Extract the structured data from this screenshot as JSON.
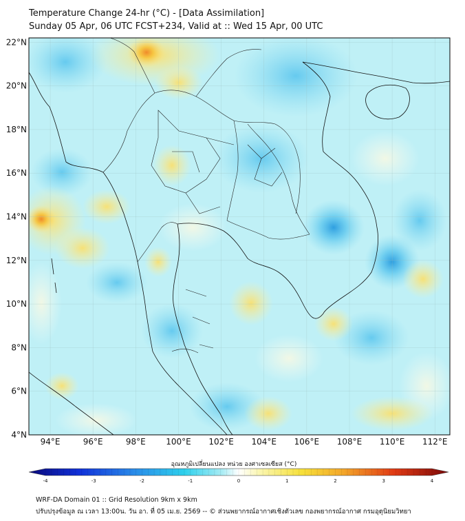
{
  "title": {
    "line1": "Temperature Change 24-hr (°C) - [Data Assimilation]",
    "line2": "Sunday 05 Apr, 06 UTC FCST+234, Valid at :: Wed 15 Apr, 00 UTC"
  },
  "map": {
    "lon_range": [
      93,
      112.7
    ],
    "lat_range": [
      4,
      22.2
    ],
    "lon_ticks": [
      "94°E",
      "96°E",
      "98°E",
      "100°E",
      "102°E",
      "104°E",
      "106°E",
      "108°E",
      "110°E",
      "112°E"
    ],
    "lon_tick_values": [
      94,
      96,
      98,
      100,
      102,
      104,
      106,
      108,
      110,
      112
    ],
    "lat_ticks": [
      "22°N",
      "20°N",
      "18°N",
      "16°N",
      "14°N",
      "12°N",
      "10°N",
      "8°N",
      "6°N",
      "4°N"
    ],
    "lat_tick_values": [
      22,
      20,
      18,
      16,
      14,
      12,
      10,
      8,
      6,
      4
    ],
    "gridlines": true,
    "base_color": "#bff0f6"
  },
  "colorbar": {
    "label": "อุณหภูมิเปลี่ยนแปลง หน่วย องศาเซลเซียส (°C)",
    "range": [
      -4,
      4
    ],
    "ticks": [
      "-4",
      "-3",
      "-2",
      "-1",
      "0",
      "1",
      "2",
      "3",
      "4"
    ],
    "tick_values": [
      -4,
      -3,
      -2,
      -1,
      0,
      1,
      2,
      3,
      4
    ]
  },
  "footer": {
    "line1": "WRF-DA Domain 01 :: Grid Resolution 9km x 9km",
    "line2": "ปรับปรุงข้อมูล ณ เวลา 13:00น. วัน อา. ที่ 05 เม.ย. 2569 -- © ส่วนพยากรณ์อากาศเชิงตัวเลข กองพยากรณ์อากาศ กรมอุตุนิยมวิทยา"
  }
}
